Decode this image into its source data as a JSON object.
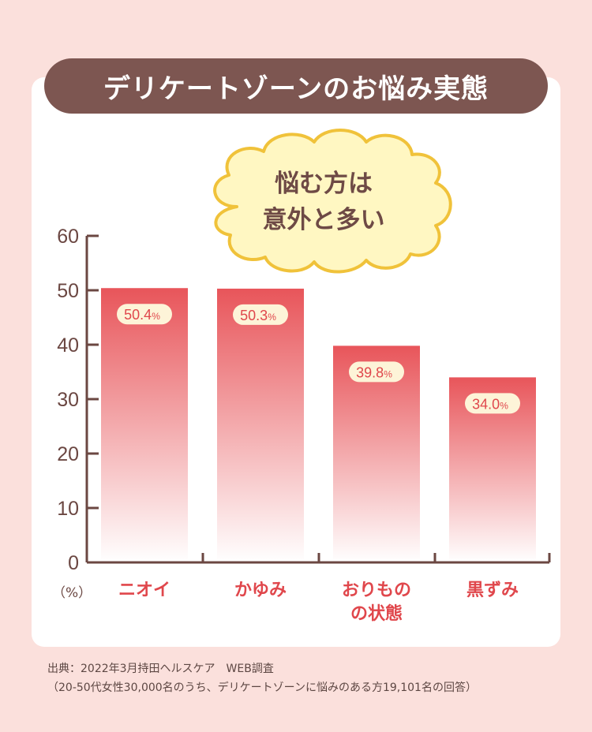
{
  "title": "デリケートゾーンのお悩み実態",
  "callout": {
    "line1": "悩む方は",
    "line2": "意外と多い"
  },
  "chart_data": {
    "type": "bar",
    "categories": [
      {
        "lines": [
          "ニオイ"
        ]
      },
      {
        "lines": [
          "かゆみ"
        ]
      },
      {
        "lines": [
          "おりもの",
          "の状態"
        ]
      },
      {
        "lines": [
          "黒ずみ"
        ]
      }
    ],
    "values": [
      50.4,
      50.3,
      39.8,
      34.0
    ],
    "value_labels": [
      "50.4",
      "50.3",
      "39.8",
      "34.0"
    ],
    "value_unit": "%",
    "y_ticks": [
      "0",
      "10",
      "20",
      "30",
      "40",
      "50",
      "60"
    ],
    "ylim": [
      0,
      60
    ],
    "y_unit_label": "（%）",
    "colors": {
      "bar_top": "#e8555a",
      "bar_bottom": "#ffffff",
      "label": "#e0474c",
      "axis": "#6b4742",
      "value_pill": "#fdf4d8"
    }
  },
  "source": {
    "line1": "出典：2022年3月持田ヘルスケア　WEB調査",
    "line2": "（20-50代女性30,000名のうち、デリケートゾーンに悩みのある方19,101名の回答）"
  }
}
